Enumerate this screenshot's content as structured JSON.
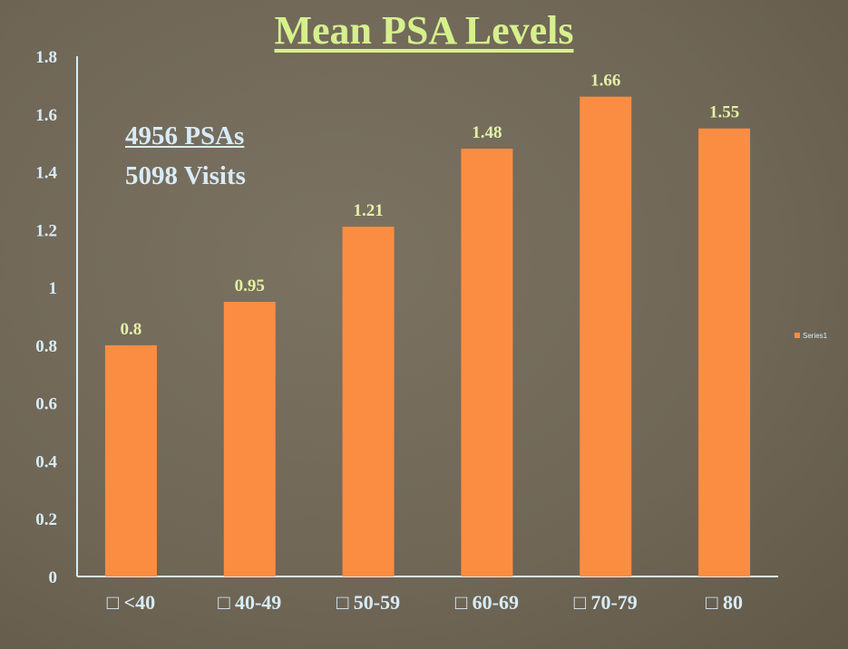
{
  "chart_data": {
    "type": "bar",
    "title": "Mean PSA Levels",
    "categories": [
      "□ <40",
      "□ 40-49",
      "□ 50-59",
      "□ 60-69",
      "□ 70-79",
      "□ 80"
    ],
    "series": [
      {
        "name": "Series1",
        "values": [
          0.8,
          0.95,
          1.21,
          1.48,
          1.66,
          1.55
        ]
      }
    ],
    "data_labels": [
      "0.8",
      "0.95",
      "1.21",
      "1.48",
      "1.66",
      "1.55"
    ],
    "ylim": [
      0,
      1.8
    ],
    "yticks": [
      "0",
      "0.2",
      "0.4",
      "0.6",
      "0.8",
      "1",
      "1.2",
      "1.4",
      "1.6",
      "1.8"
    ],
    "grid": false,
    "legend": "right",
    "annotations": [
      "4956 PSAs",
      "5098 Visits"
    ],
    "colors": {
      "bar": "#fb8d42",
      "title": "#d6f08c",
      "axis_text": "#d7ecf8",
      "data_label": "#e2f2a6"
    }
  }
}
